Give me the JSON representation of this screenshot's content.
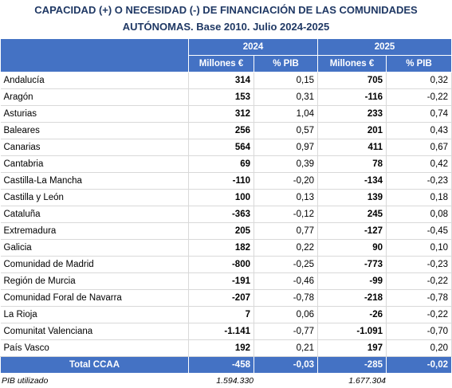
{
  "title": {
    "line1": "CAPACIDAD (+) O NECESIDAD (-) DE FINANCIACIÓN DE LAS COMUNIDADES",
    "line2": "AUTÓNOMAS. Base 2010. Julio 2024-2025"
  },
  "header": {
    "year1": "2024",
    "year2": "2025",
    "col_mill": "Millones €",
    "col_pib": "% PIB"
  },
  "rows": [
    {
      "name": "Andalucía",
      "m2024": "314",
      "p2024": "0,15",
      "m2025": "705",
      "p2025": "0,32"
    },
    {
      "name": "Aragón",
      "m2024": "153",
      "p2024": "0,31",
      "m2025": "-116",
      "p2025": "-0,22"
    },
    {
      "name": "Asturias",
      "m2024": "312",
      "p2024": "1,04",
      "m2025": "233",
      "p2025": "0,74"
    },
    {
      "name": "Baleares",
      "m2024": "256",
      "p2024": "0,57",
      "m2025": "201",
      "p2025": "0,43"
    },
    {
      "name": "Canarias",
      "m2024": "564",
      "p2024": "0,97",
      "m2025": "411",
      "p2025": "0,67"
    },
    {
      "name": "Cantabria",
      "m2024": "69",
      "p2024": "0,39",
      "m2025": "78",
      "p2025": "0,42"
    },
    {
      "name": "Castilla-La Mancha",
      "m2024": "-110",
      "p2024": "-0,20",
      "m2025": "-134",
      "p2025": "-0,23"
    },
    {
      "name": "Castilla y León",
      "m2024": "100",
      "p2024": "0,13",
      "m2025": "139",
      "p2025": "0,18"
    },
    {
      "name": "Cataluña",
      "m2024": "-363",
      "p2024": "-0,12",
      "m2025": "245",
      "p2025": "0,08"
    },
    {
      "name": "Extremadura",
      "m2024": "205",
      "p2024": "0,77",
      "m2025": "-127",
      "p2025": "-0,45"
    },
    {
      "name": "Galicia",
      "m2024": "182",
      "p2024": "0,22",
      "m2025": "90",
      "p2025": "0,10"
    },
    {
      "name": "Comunidad de Madrid",
      "m2024": "-800",
      "p2024": "-0,25",
      "m2025": "-773",
      "p2025": "-0,23"
    },
    {
      "name": "Región de Murcia",
      "m2024": "-191",
      "p2024": "-0,46",
      "m2025": "-99",
      "p2025": "-0,22"
    },
    {
      "name": "Comunidad Foral de Navarra",
      "m2024": "-207",
      "p2024": "-0,78",
      "m2025": "-218",
      "p2025": "-0,78"
    },
    {
      "name": "La Rioja",
      "m2024": "7",
      "p2024": "0,06",
      "m2025": "-26",
      "p2025": "-0,22"
    },
    {
      "name": "Comunitat Valenciana",
      "m2024": "-1.141",
      "p2024": "-0,77",
      "m2025": "-1.091",
      "p2025": "-0,70"
    },
    {
      "name": "País Vasco",
      "m2024": "192",
      "p2024": "0,21",
      "m2025": "197",
      "p2025": "0,20"
    }
  ],
  "total": {
    "name": "Total CCAA",
    "m2024": "-458",
    "p2024": "-0,03",
    "m2025": "-285",
    "p2025": "-0,02"
  },
  "footer": {
    "label": "PIB utilizado",
    "v2024": "1.594.330",
    "v2025": "1.677.304"
  }
}
